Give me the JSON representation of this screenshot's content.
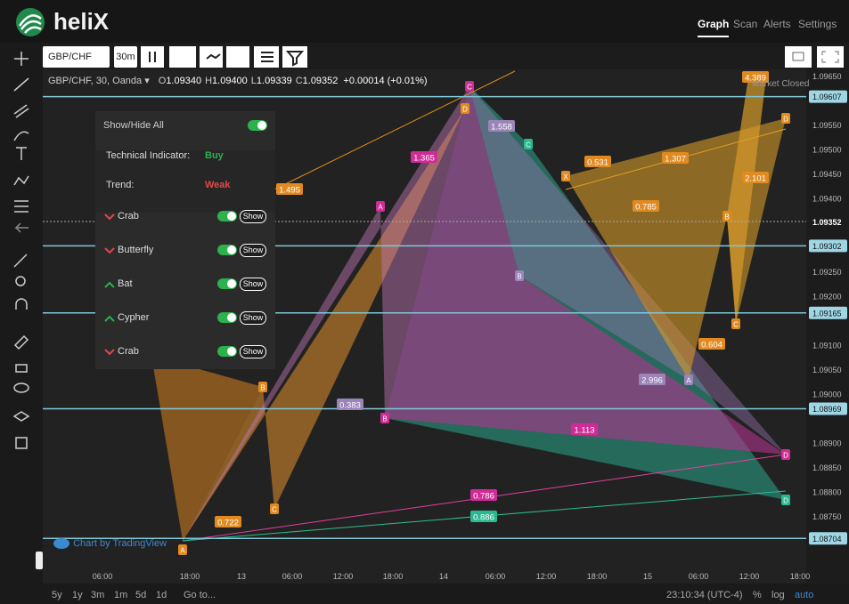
{
  "header": {
    "logo": "heliX",
    "nav": [
      "Graph",
      "Scan",
      "Alerts",
      "Settings"
    ]
  },
  "toolbar": {
    "symbol": "GBP/CHF",
    "interval": "30m"
  },
  "legend": {
    "title": "GBP/CHF, 30, Oanda",
    "ohlc": [
      {
        "k": "O",
        "v": "1.09340"
      },
      {
        "k": "H",
        "v": "1.09400"
      },
      {
        "k": "L",
        "v": "1.09339"
      },
      {
        "k": "C",
        "v": "1.09352"
      }
    ],
    "change": "+0.00014 (+0.01%)",
    "status": "Market Closed"
  },
  "panel": {
    "show_hide": "Show/Hide All",
    "indicator_label": "Technical Indicator:",
    "indicator_value": "Buy",
    "trend_label": "Trend:",
    "trend_value": "Weak",
    "show": "Show",
    "patterns": [
      "Crab",
      "Butterfly",
      "Bat",
      "Cypher",
      "Crab"
    ]
  },
  "watermark": "Chart by TradingView",
  "price_axis": {
    "ticks": [
      {
        "value": 1.0965,
        "label": "1.09650"
      },
      {
        "value": 1.0955,
        "label": "1.09550"
      },
      {
        "value": 1.095,
        "label": "1.09500"
      },
      {
        "value": 1.0945,
        "label": "1.09450"
      },
      {
        "value": 1.094,
        "label": "1.09400"
      },
      {
        "value": 1.0925,
        "label": "1.09250"
      },
      {
        "value": 1.092,
        "label": "1.09200"
      },
      {
        "value": 1.091,
        "label": "1.09100"
      },
      {
        "value": 1.0905,
        "label": "1.09050"
      },
      {
        "value": 1.09,
        "label": "1.09000"
      },
      {
        "value": 1.089,
        "label": "1.08900"
      },
      {
        "value": 1.0885,
        "label": "1.08850"
      },
      {
        "value": 1.088,
        "label": "1.08800"
      },
      {
        "value": 1.0875,
        "label": "1.08750"
      }
    ],
    "levels": [
      1.09607,
      1.09302,
      1.09165,
      1.08969,
      1.08704
    ],
    "current": 1.09352
  },
  "time_axis": [
    "06:00",
    "18:00",
    "13",
    "06:00",
    "12:00",
    "18:00",
    "14",
    "06:00",
    "12:00",
    "18:00",
    "15",
    "06:00",
    "12:00",
    "18:00"
  ],
  "pattern_labels": [
    "1.495",
    "1.365",
    "0.531",
    "1.307",
    "0.785",
    "2.101",
    "4.389",
    "0.383",
    "1.113",
    "2.996",
    "0.604",
    "0.722",
    "0.786",
    "0.886",
    "1.558"
  ],
  "pattern_points": [
    "C",
    "D",
    "C",
    "A",
    "B",
    "B",
    "X",
    "B",
    "C",
    "A",
    "D",
    "D",
    "D",
    "B",
    "C",
    "A"
  ],
  "footer": {
    "ranges": [
      "5y",
      "1y",
      "3m",
      "1m",
      "5d",
      "1d"
    ],
    "goto": "Go to...",
    "time": "23:10:34 (UTC-4)",
    "pct": "%",
    "log": "log",
    "auto": "auto"
  }
}
